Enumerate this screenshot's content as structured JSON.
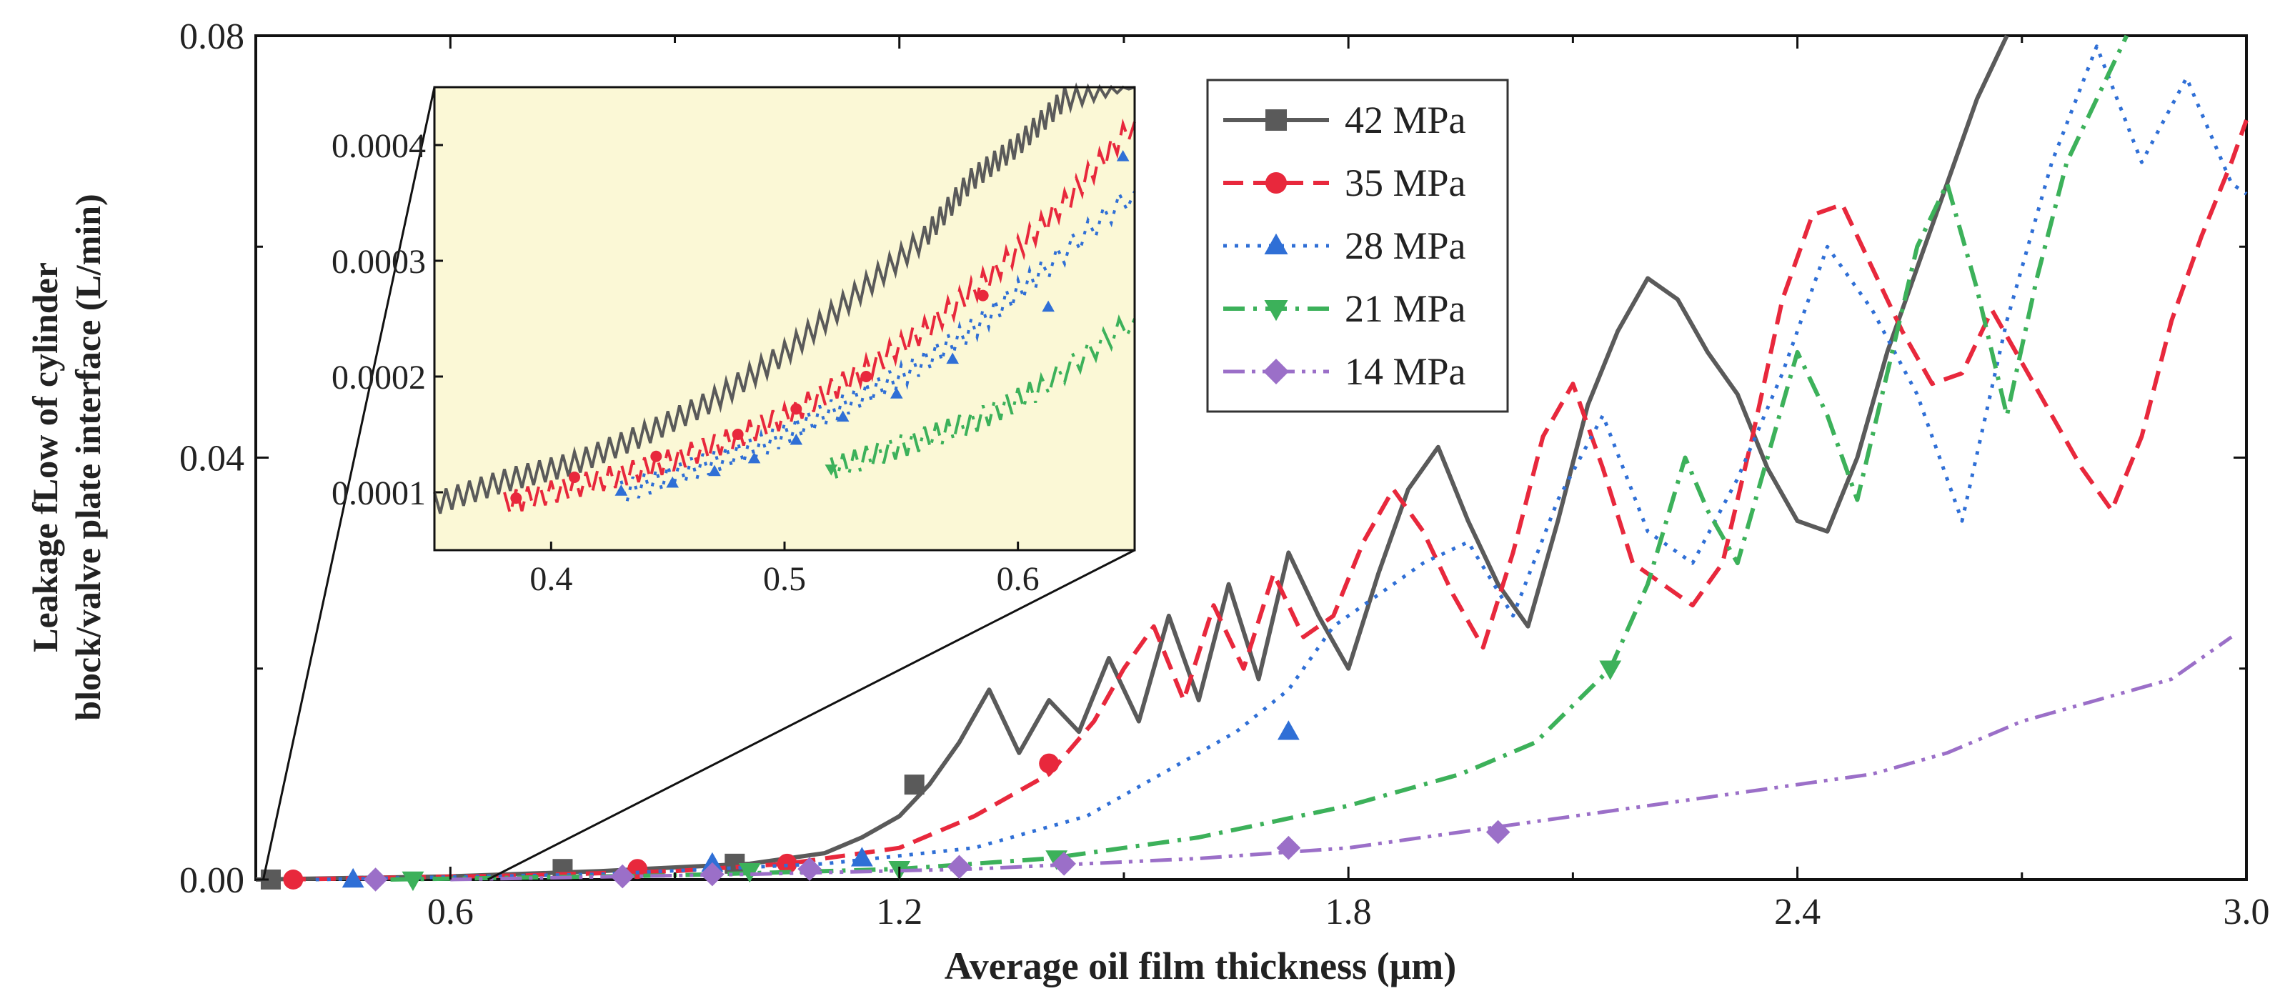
{
  "chart_data": {
    "type": "line",
    "title": "",
    "xlabel": "Average oil film thickness (μm)",
    "ylabel_line1": "Leakage fLow of cylinder",
    "ylabel_line2": "block/valve plate interface (L/min)",
    "xlim": [
      0.34,
      3.0
    ],
    "ylim": [
      0.0,
      0.08
    ],
    "x_ticks": [
      0.6,
      1.2,
      1.8,
      2.4,
      3.0
    ],
    "x_tick_labels": [
      "0.6",
      "1.2",
      "1.8",
      "2.4",
      "3.0"
    ],
    "y_ticks": [
      0.0,
      0.04,
      0.08
    ],
    "y_tick_labels": [
      "0.00",
      "0.04",
      "0.08"
    ],
    "legend_position": "top-center",
    "series": [
      {
        "name": "42 MPa",
        "color": "#5a5a5a",
        "dash": "solid",
        "marker": "square",
        "x": [
          0.34,
          0.6,
          0.8,
          1.0,
          1.1,
          1.15,
          1.2,
          1.24,
          1.28,
          1.32,
          1.36,
          1.4,
          1.44,
          1.48,
          1.52,
          1.56,
          1.6,
          1.64,
          1.68,
          1.72,
          1.76,
          1.8,
          1.84,
          1.88,
          1.92,
          1.96,
          2.0,
          2.04,
          2.08,
          2.12,
          2.16,
          2.2,
          2.24,
          2.28,
          2.32,
          2.36,
          2.4,
          2.44,
          2.48,
          2.52,
          2.56,
          2.6,
          2.64,
          2.68
        ],
        "y": [
          0.0,
          0.0003,
          0.0008,
          0.0015,
          0.0025,
          0.004,
          0.006,
          0.009,
          0.013,
          0.018,
          0.012,
          0.017,
          0.014,
          0.021,
          0.015,
          0.025,
          0.017,
          0.028,
          0.019,
          0.031,
          0.025,
          0.02,
          0.029,
          0.037,
          0.041,
          0.034,
          0.028,
          0.024,
          0.034,
          0.045,
          0.052,
          0.057,
          0.055,
          0.05,
          0.046,
          0.039,
          0.034,
          0.033,
          0.04,
          0.05,
          0.058,
          0.066,
          0.074,
          0.08
        ],
        "markers_x": [
          0.36,
          0.75,
          0.98,
          1.22
        ],
        "markers_y": [
          0.0,
          0.001,
          0.0015,
          0.009
        ]
      },
      {
        "name": "35 MPa",
        "color": "#e8283c",
        "dash": "dash",
        "marker": "circle",
        "x": [
          0.38,
          0.7,
          0.9,
          1.05,
          1.2,
          1.3,
          1.4,
          1.46,
          1.5,
          1.54,
          1.58,
          1.62,
          1.66,
          1.7,
          1.74,
          1.78,
          1.82,
          1.86,
          1.9,
          1.94,
          1.98,
          2.02,
          2.06,
          2.1,
          2.14,
          2.18,
          2.22,
          2.26,
          2.3,
          2.34,
          2.38,
          2.42,
          2.46,
          2.5,
          2.54,
          2.58,
          2.62,
          2.66,
          2.7,
          2.74,
          2.78,
          2.82,
          2.86,
          2.9,
          2.94,
          2.98,
          3.0
        ],
        "y": [
          0.0,
          0.0004,
          0.0008,
          0.0015,
          0.003,
          0.006,
          0.01,
          0.015,
          0.02,
          0.024,
          0.017,
          0.026,
          0.02,
          0.029,
          0.023,
          0.025,
          0.032,
          0.037,
          0.033,
          0.027,
          0.022,
          0.031,
          0.042,
          0.047,
          0.039,
          0.03,
          0.028,
          0.026,
          0.03,
          0.042,
          0.055,
          0.063,
          0.064,
          0.058,
          0.052,
          0.047,
          0.048,
          0.054,
          0.049,
          0.044,
          0.039,
          0.035,
          0.042,
          0.053,
          0.061,
          0.068,
          0.072
        ],
        "markers_x": [
          0.39,
          0.85,
          1.05,
          1.4
        ],
        "markers_y": [
          0.0,
          0.001,
          0.0015,
          0.011
        ]
      },
      {
        "name": "28 MPa",
        "color": "#2f6fd6",
        "dash": "dot",
        "marker": "triangle-up",
        "x": [
          0.42,
          0.8,
          1.1,
          1.3,
          1.45,
          1.55,
          1.65,
          1.72,
          1.78,
          1.84,
          1.9,
          1.96,
          2.02,
          2.08,
          2.14,
          2.2,
          2.26,
          2.32,
          2.38,
          2.44,
          2.5,
          2.56,
          2.62,
          2.68,
          2.74,
          2.8,
          2.86,
          2.92,
          2.98,
          3.0
        ],
        "y": [
          0.0,
          0.0005,
          0.0015,
          0.003,
          0.006,
          0.01,
          0.014,
          0.018,
          0.024,
          0.027,
          0.03,
          0.032,
          0.025,
          0.036,
          0.044,
          0.033,
          0.03,
          0.038,
          0.048,
          0.06,
          0.054,
          0.046,
          0.034,
          0.053,
          0.068,
          0.079,
          0.068,
          0.076,
          0.066,
          0.065
        ],
        "markers_x": [
          0.47,
          0.95,
          1.15,
          1.72
        ],
        "markers_y": [
          0.0,
          0.0015,
          0.002,
          0.014
        ]
      },
      {
        "name": "21 MPa",
        "color": "#3cb15a",
        "dash": "dashdot",
        "marker": "triangle-down",
        "x": [
          0.52,
          0.9,
          1.2,
          1.4,
          1.6,
          1.8,
          1.95,
          2.05,
          2.15,
          2.2,
          2.25,
          2.28,
          2.32,
          2.36,
          2.4,
          2.44,
          2.48,
          2.52,
          2.56,
          2.6,
          2.64,
          2.68,
          2.72,
          2.76,
          2.8,
          2.84
        ],
        "y": [
          0.0,
          0.0004,
          0.001,
          0.002,
          0.004,
          0.007,
          0.01,
          0.013,
          0.02,
          0.028,
          0.04,
          0.035,
          0.03,
          0.04,
          0.05,
          0.044,
          0.036,
          0.048,
          0.06,
          0.066,
          0.056,
          0.044,
          0.057,
          0.068,
          0.074,
          0.08
        ],
        "markers_x": [
          0.55,
          1.0,
          1.2,
          1.41,
          2.15
        ],
        "markers_y": [
          0.0,
          0.0008,
          0.001,
          0.002,
          0.02
        ]
      },
      {
        "name": "14 MPa",
        "color": "#9b6fc8",
        "dash": "dashdotdot",
        "marker": "diamond",
        "x": [
          0.6,
          1.0,
          1.3,
          1.6,
          1.8,
          2.0,
          2.2,
          2.4,
          2.5,
          2.6,
          2.7,
          2.8,
          2.9,
          2.98
        ],
        "y": [
          0.0,
          0.0005,
          0.001,
          0.002,
          0.003,
          0.005,
          0.007,
          0.009,
          0.01,
          0.012,
          0.015,
          0.017,
          0.019,
          0.023
        ],
        "markers_x": [
          0.5,
          0.83,
          0.95,
          1.08,
          1.28,
          1.42,
          1.72,
          2.0
        ],
        "markers_y": [
          0.0,
          0.0003,
          0.0005,
          0.001,
          0.0012,
          0.0015,
          0.003,
          0.0045
        ]
      }
    ],
    "inset": {
      "xlim": [
        0.35,
        0.65
      ],
      "ylim": [
        5e-05,
        0.00045
      ],
      "x_ticks": [
        0.4,
        0.5,
        0.6
      ],
      "x_tick_labels": [
        "0.4",
        "0.5",
        "0.6"
      ],
      "y_ticks": [
        0.0001,
        0.0002,
        0.0003,
        0.0004
      ],
      "y_tick_labels": [
        "0.0001",
        "0.0002",
        "0.0003",
        "0.0004"
      ],
      "background": "#fbf8d6",
      "series": [
        {
          "name": "42 MPa",
          "x": [
            0.35,
            0.38,
            0.41,
            0.44,
            0.47,
            0.5,
            0.53,
            0.56,
            0.58,
            0.6,
            0.62,
            0.65
          ],
          "y": [
            9e-05,
            0.00011,
            0.000125,
            0.00015,
            0.00018,
            0.00022,
            0.00027,
            0.00032,
            0.00037,
            0.0004,
            0.00044,
            0.00046
          ]
        },
        {
          "name": "35 MPa",
          "x": [
            0.38,
            0.41,
            0.44,
            0.47,
            0.5,
            0.53,
            0.56,
            0.59,
            0.62,
            0.65
          ],
          "y": [
            9e-05,
            0.000105,
            0.00012,
            0.00014,
            0.000165,
            0.0002,
            0.00024,
            0.00029,
            0.00035,
            0.00042
          ]
        },
        {
          "name": "28 MPa",
          "x": [
            0.43,
            0.46,
            0.49,
            0.52,
            0.55,
            0.58,
            0.61,
            0.65
          ],
          "y": [
            0.0001,
            0.00012,
            0.00014,
            0.00017,
            0.0002,
            0.00024,
            0.00029,
            0.00036
          ]
        },
        {
          "name": "21 MPa",
          "x": [
            0.52,
            0.55,
            0.58,
            0.61,
            0.65
          ],
          "y": [
            0.00012,
            0.00014,
            0.00016,
            0.00019,
            0.00025
          ]
        }
      ],
      "markers": [
        {
          "name": "35 MPa",
          "x": [
            0.385,
            0.41,
            0.445,
            0.48,
            0.505,
            0.535,
            0.585
          ],
          "y": [
            9.5e-05,
            0.000113,
            0.000131,
            0.00015,
            0.000172,
            0.0002,
            0.00027
          ]
        },
        {
          "name": "28 MPa",
          "x": [
            0.43,
            0.452,
            0.47,
            0.487,
            0.505,
            0.525,
            0.548,
            0.572,
            0.613,
            0.645
          ],
          "y": [
            0.000101,
            0.000108,
            0.000118,
            0.000129,
            0.000145,
            0.000165,
            0.000185,
            0.000215,
            0.00026,
            0.00039
          ]
        },
        {
          "name": "21 MPa",
          "x": [
            0.52
          ],
          "y": [
            0.00012
          ]
        }
      ]
    }
  }
}
